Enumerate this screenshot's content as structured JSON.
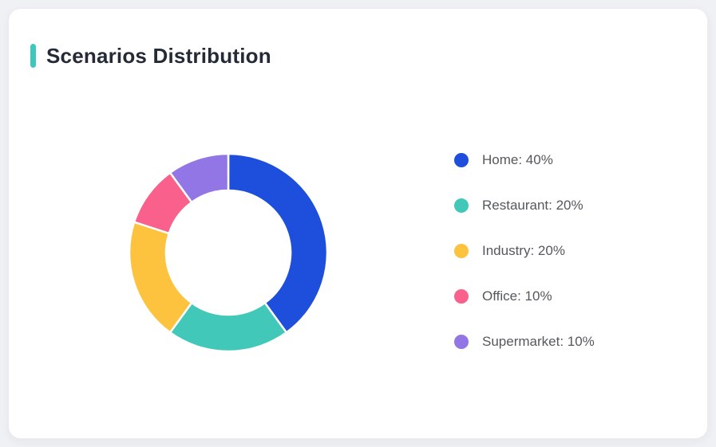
{
  "window": {
    "background_color": "#f0f1f4"
  },
  "card": {
    "background_color": "#ffffff"
  },
  "header": {
    "title": "Scenarios Distribution",
    "accent_color": "#3ec8bb"
  },
  "chart_data": {
    "type": "pie",
    "subtype": "donut",
    "title": "Scenarios Distribution",
    "categories": [
      "Home",
      "Restaurant",
      "Industry",
      "Office",
      "Supermarket"
    ],
    "values": [
      40,
      20,
      20,
      10,
      10
    ],
    "unit": "%",
    "colors": [
      "#1e4fdc",
      "#41c8b9",
      "#fdc33e",
      "#f9618c",
      "#9376e6"
    ],
    "start_angle_deg": -90,
    "direction": "clockwise",
    "inner_radius_ratio": 0.63,
    "slice_gap_color": "#ffffff",
    "legend_position": "right",
    "legend": [
      {
        "label": "Home: 40%"
      },
      {
        "label": "Restaurant: 20%"
      },
      {
        "label": "Industry: 20%"
      },
      {
        "label": "Office: 10%"
      },
      {
        "label": "Supermarket: 10%"
      }
    ]
  }
}
